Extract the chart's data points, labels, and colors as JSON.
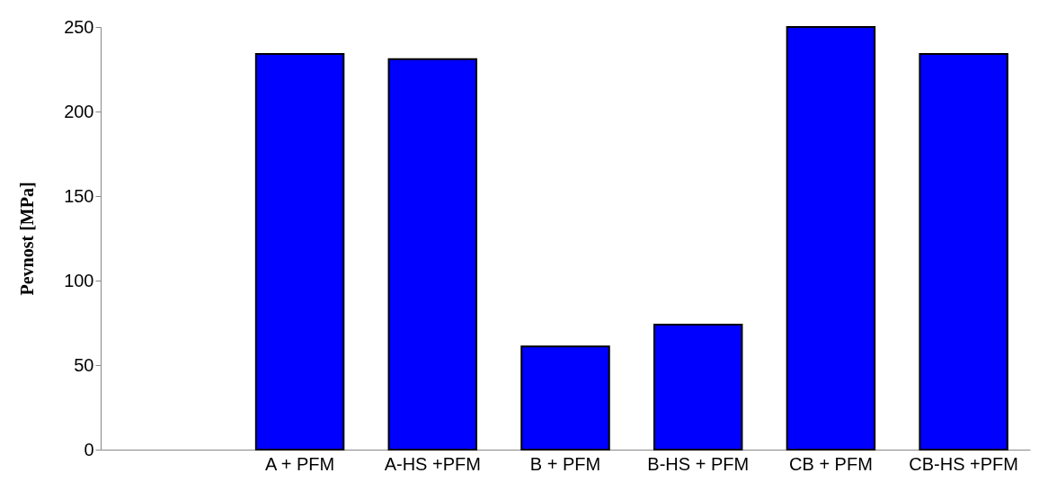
{
  "chart_data": {
    "type": "bar",
    "ylabel": "Pevnost [MPa]",
    "categories": [
      null,
      "A + PFM",
      "A-HS +PFM",
      "B + PFM",
      "B-HS + PFM",
      "CB + PFM",
      "CB-HS +PFM"
    ],
    "values": [
      null,
      234,
      231,
      61,
      74,
      250,
      234
    ],
    "color": "#0000ff",
    "ylim": [
      0,
      250
    ],
    "yticks": [
      0,
      50,
      100,
      150,
      200,
      250
    ],
    "grid": false
  }
}
